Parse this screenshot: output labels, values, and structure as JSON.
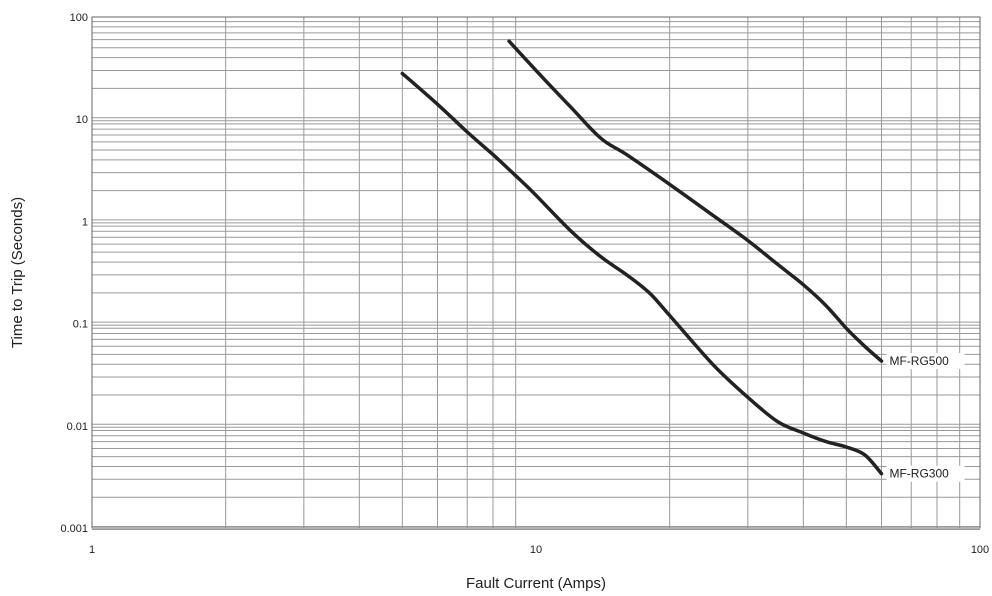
{
  "chart_data": {
    "type": "line",
    "title": "",
    "xlabel": "Fault Current (Amps)",
    "ylabel": "Time to Trip (Seconds)",
    "x_scale": "log",
    "y_scale": "log",
    "xlim": [
      1,
      100
    ],
    "ylim": [
      0.001,
      100
    ],
    "x_ticks": [
      1,
      10,
      100
    ],
    "x_tick_labels": [
      "1",
      "10",
      "100"
    ],
    "y_ticks": [
      0.001,
      0.01,
      0.1,
      1,
      10,
      100
    ],
    "y_tick_labels": [
      "0.001",
      "0.01",
      "0.1",
      "1",
      "10",
      "100"
    ],
    "grid": true,
    "line_color": "#222222",
    "grid_color": "#9a9a9a",
    "series": [
      {
        "name": "MF-RG500",
        "x": [
          8.7,
          10,
          12,
          14,
          16,
          20,
          25,
          30,
          35,
          40,
          45,
          50,
          55,
          60
        ],
        "y": [
          58,
          30,
          13,
          6.5,
          4.5,
          2.3,
          1.15,
          0.65,
          0.38,
          0.24,
          0.15,
          0.09,
          0.06,
          0.043
        ]
      },
      {
        "name": "MF-RG300",
        "x": [
          5,
          6,
          7,
          8,
          9,
          10,
          12,
          14,
          16,
          18,
          20,
          25,
          30,
          35,
          40,
          45,
          50,
          55,
          60
        ],
        "y": [
          28,
          14,
          7.5,
          4.5,
          2.8,
          1.8,
          0.8,
          0.45,
          0.3,
          0.2,
          0.12,
          0.04,
          0.019,
          0.011,
          0.0085,
          0.007,
          0.0062,
          0.0052,
          0.0034
        ]
      }
    ]
  }
}
